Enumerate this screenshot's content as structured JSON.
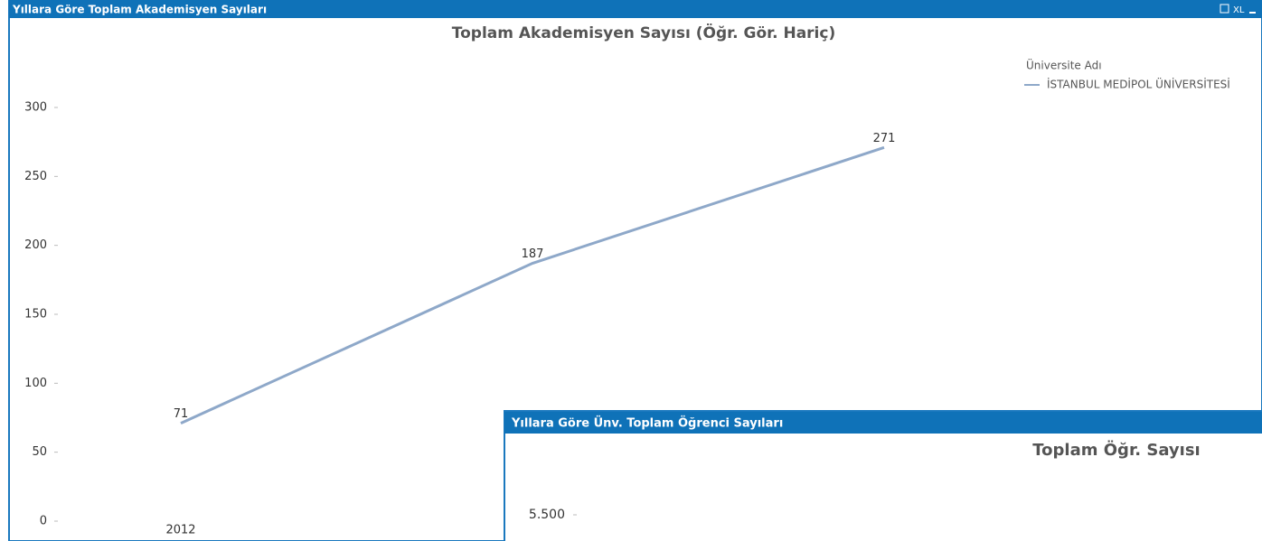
{
  "windows": [
    {
      "title": "Yıllara Göre Toplam Akademisyen Sayıları",
      "button": "XL"
    },
    {
      "title": "Yıllara Göre Ünv. Toplam Öğrenci Sayıları"
    }
  ],
  "chart_data": [
    {
      "type": "line",
      "title": "Toplam Akademisyen Sayısı (Öğr. Gör. Hariç)",
      "legend_title": "Üniversite Adı",
      "categories": [
        "2012",
        null,
        null
      ],
      "series": [
        {
          "name": "İSTANBUL MEDİPOL ÜNİVERSİTESİ",
          "color": "#8ea8c9",
          "values": [
            71,
            187,
            271
          ]
        }
      ],
      "ylim": [
        0,
        300
      ],
      "yticks": [
        0,
        50,
        100,
        150,
        200,
        250,
        300
      ]
    },
    {
      "type": "line",
      "title": "Toplam Öğr. Sayısı",
      "ylim": [
        0,
        6000
      ],
      "yticks": [
        {
          "value": 5500,
          "label": "5.500"
        }
      ]
    }
  ]
}
